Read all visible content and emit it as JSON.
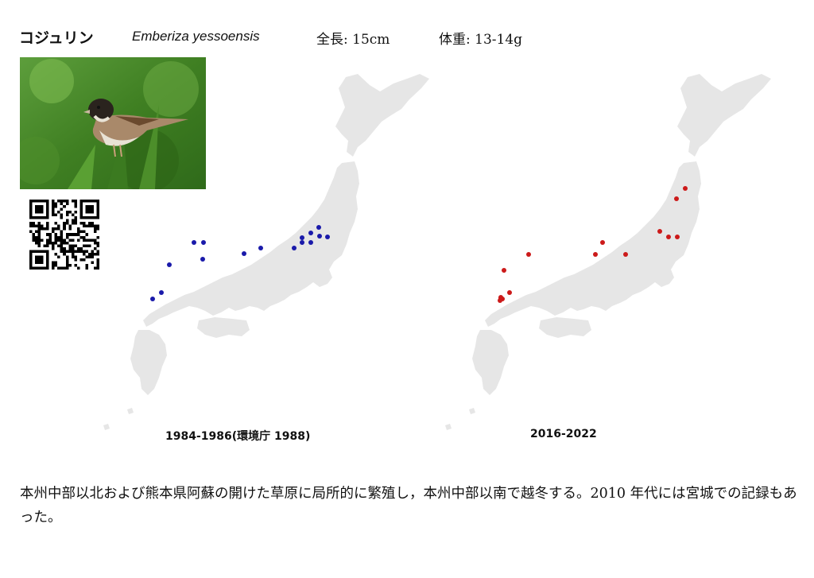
{
  "species": {
    "name_jp": "コジュリン",
    "name_scientific": "Emberiza yessoensis",
    "length": "全長: 15cm",
    "weight": "体重: 13-14g"
  },
  "maps": [
    {
      "caption": "1984-1986(環境庁 1988)",
      "dot_color": "#1a1aaa",
      "dot_count": 16
    },
    {
      "caption": "2016-2022",
      "dot_color": "#cc1a1a",
      "dot_count": 15
    }
  ],
  "colors": {
    "land": "#e6e6e6",
    "background": "#ffffff"
  },
  "description": "本州中部以北および熊本県阿蘇の開けた草原に局所的に繁殖し，本州中部以南で越冬する。2010 年代には宮城での記録もあった。"
}
